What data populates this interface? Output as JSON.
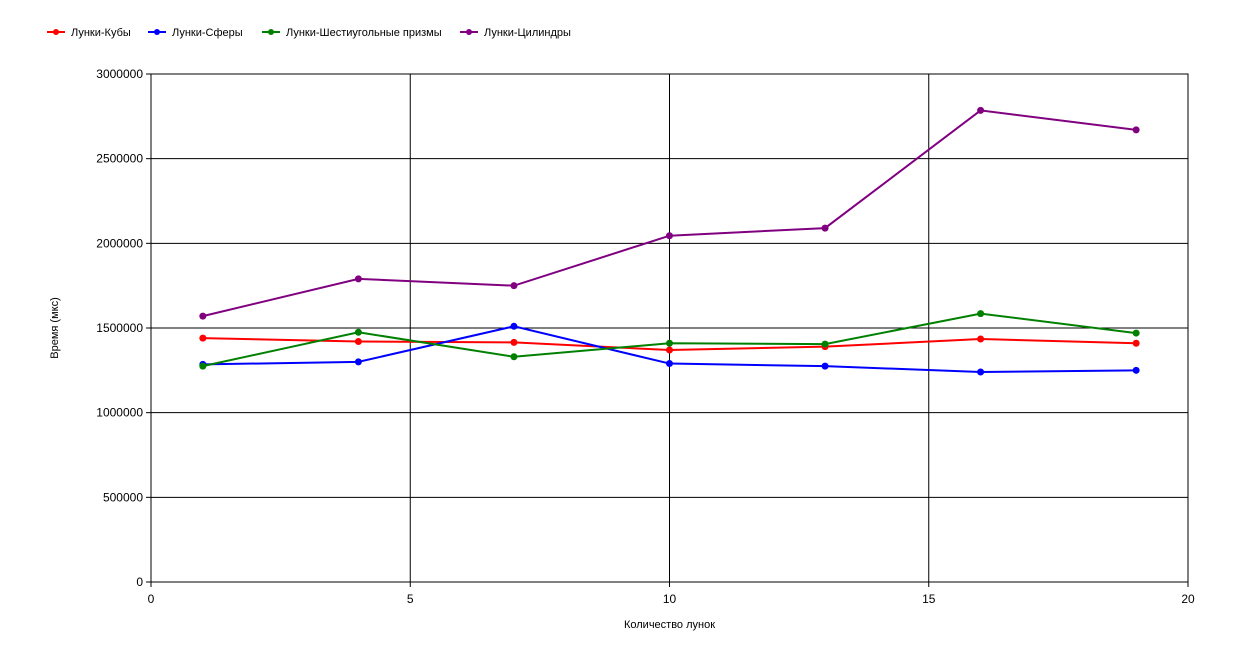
{
  "chart_data": {
    "type": "line",
    "title": "",
    "xlabel": "Количество лунок",
    "ylabel": "Время (мкс)",
    "xlim": [
      0,
      20
    ],
    "ylim": [
      0,
      3000000
    ],
    "xticks": [
      0,
      5,
      10,
      15,
      20
    ],
    "yticks": [
      0,
      500000,
      1000000,
      1500000,
      2000000,
      2500000,
      3000000
    ],
    "grid": true,
    "legend_position": "top-left",
    "x": [
      1,
      4,
      7,
      10,
      13,
      16,
      19
    ],
    "series": [
      {
        "name": "Лунки-Кубы",
        "color": "#ff0000",
        "values": [
          1440000,
          1420000,
          1415000,
          1370000,
          1390000,
          1435000,
          1410000
        ]
      },
      {
        "name": "Лунки-Сферы",
        "color": "#0000ff",
        "values": [
          1285000,
          1300000,
          1510000,
          1290000,
          1275000,
          1240000,
          1250000
        ]
      },
      {
        "name": "Лунки-Шестиугольные призмы",
        "color": "#008000",
        "values": [
          1275000,
          1475000,
          1330000,
          1410000,
          1405000,
          1585000,
          1470000
        ]
      },
      {
        "name": "Лунки-Цилиндры",
        "color": "#800080",
        "values": [
          1570000,
          1790000,
          1750000,
          2045000,
          2090000,
          2785000,
          2670000
        ]
      }
    ]
  }
}
